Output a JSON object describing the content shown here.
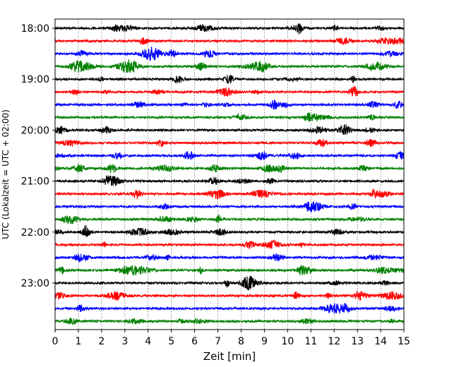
{
  "chart_data": {
    "type": "line",
    "title": "",
    "xlabel": "Zeit  [min]",
    "ylabel": "UTC (Lokalzeit = UTC + 02:00)",
    "xlim": [
      0,
      15
    ],
    "x_ticks": [
      "0",
      "1",
      "2",
      "3",
      "4",
      "5",
      "6",
      "7",
      "8",
      "9",
      "10",
      "11",
      "12",
      "13",
      "14",
      "15"
    ],
    "y_ticks": [
      {
        "label": "18:00",
        "row": 0
      },
      {
        "label": "19:00",
        "row": 4
      },
      {
        "label": "20:00",
        "row": 8
      },
      {
        "label": "21:00",
        "row": 12
      },
      {
        "label": "22:00",
        "row": 16
      },
      {
        "label": "23:00",
        "row": 20
      }
    ],
    "grid": "vertical dotted lines at each minute",
    "trace_interval_min": 15,
    "trace_colors": [
      "#000000",
      "#ff0000",
      "#0000ff",
      "#008000"
    ],
    "series": [
      {
        "start": "18:00",
        "color": "#000000"
      },
      {
        "start": "18:15",
        "color": "#ff0000"
      },
      {
        "start": "18:30",
        "color": "#0000ff"
      },
      {
        "start": "18:45",
        "color": "#008000"
      },
      {
        "start": "19:00",
        "color": "#000000"
      },
      {
        "start": "19:15",
        "color": "#ff0000"
      },
      {
        "start": "19:30",
        "color": "#0000ff"
      },
      {
        "start": "19:45",
        "color": "#008000"
      },
      {
        "start": "20:00",
        "color": "#000000"
      },
      {
        "start": "20:15",
        "color": "#ff0000"
      },
      {
        "start": "20:30",
        "color": "#0000ff"
      },
      {
        "start": "20:45",
        "color": "#008000"
      },
      {
        "start": "21:00",
        "color": "#000000"
      },
      {
        "start": "21:15",
        "color": "#ff0000"
      },
      {
        "start": "21:30",
        "color": "#0000ff"
      },
      {
        "start": "21:45",
        "color": "#008000"
      },
      {
        "start": "22:00",
        "color": "#000000"
      },
      {
        "start": "22:15",
        "color": "#ff0000"
      },
      {
        "start": "22:30",
        "color": "#0000ff"
      },
      {
        "start": "22:45",
        "color": "#008000"
      },
      {
        "start": "23:00",
        "color": "#000000"
      },
      {
        "start": "23:15",
        "color": "#ff0000"
      },
      {
        "start": "23:30",
        "color": "#0000ff"
      },
      {
        "start": "23:45",
        "color": "#008000"
      }
    ]
  }
}
